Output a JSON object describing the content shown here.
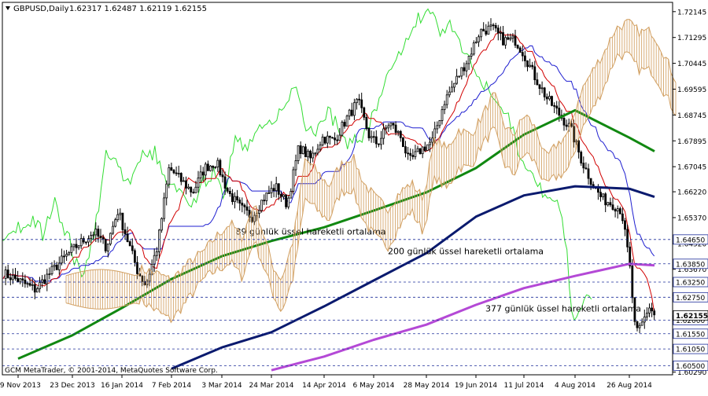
{
  "header": {
    "symbol": "GBPUSD,Daily",
    "ohlc": "1.62317 1.62487 1.62119 1.62155"
  },
  "footer": {
    "copyright": "GCM MetaTrader, © 2001-2014, MetaQuotes Software Corp."
  },
  "colors": {
    "background": "#ffffff",
    "frame": "#000000",
    "candle": "#000000",
    "tenkan": "#d10000",
    "kijun": "#1f1fd0",
    "chikou": "#33dd33",
    "cloud": "#d2a062",
    "ema89": "#118811",
    "ema200": "#0a1a6e",
    "ema377": "#b449d6",
    "level_line": "#1f2f9a",
    "price_tag_bg": "#ffffff"
  },
  "chart_data": {
    "type": "candlestick",
    "instrument": "GBPUSD",
    "timeframe": "Daily",
    "ylim": [
      1.602,
      1.7245
    ],
    "y_ticks": [
      "1.72145",
      "1.71295",
      "1.70445",
      "1.69595",
      "1.68745",
      "1.67895",
      "1.67045",
      "1.66220",
      "1.65370",
      "1.64520",
      "1.63670",
      "1.62820",
      "1.61970",
      "1.61120",
      "1.60290"
    ],
    "x_ticks": [
      "29 Nov 2013",
      "23 Dec 2013",
      "16 Jan 2014",
      "7 Feb 2014",
      "3 Mar 2014",
      "24 Mar 2014",
      "14 Apr 2014",
      "6 May 2014",
      "28 May 2014",
      "19 Jun 2014",
      "11 Jul 2014",
      "4 Aug 2014",
      "26 Aug 2014"
    ],
    "levels": [
      {
        "value": 1.6465,
        "label": "1.64650"
      },
      {
        "value": 1.6385,
        "label": "1.63850"
      },
      {
        "value": 1.6325,
        "label": "1.63250"
      },
      {
        "value": 1.6275,
        "label": "1.62750"
      },
      {
        "value": 1.62,
        "label": "1.62000"
      },
      {
        "value": 1.6155,
        "label": "1.61550"
      },
      {
        "value": 1.6105,
        "label": "1.61050"
      },
      {
        "value": 1.605,
        "label": "1.60500"
      }
    ],
    "current_price": {
      "value": 1.62155,
      "label": "1.62155"
    },
    "annotations": [
      {
        "text": "89 günlük üssel hareketli ortalama",
        "x": "24 Mar 2014",
        "y": 1.6481
      },
      {
        "text": "200 günlük üssel hareketli ortalama",
        "x": "28 May 2014",
        "y": 1.6417
      },
      {
        "text": "377  günlük üssel hareketli ortalama",
        "x": "11 Jul 2014",
        "y": 1.6228
      }
    ],
    "series": [
      {
        "name": "89 günlük üssel hareketli ortalama",
        "x": [
          "29 Nov 2013",
          "23 Dec 2013",
          "16 Jan 2014",
          "7 Feb 2014",
          "3 Mar 2014",
          "24 Mar 2014",
          "14 Apr 2014",
          "6 May 2014",
          "28 May 2014",
          "19 Jun 2014",
          "11 Jul 2014",
          "4 Aug 2014",
          "26 Aug 2014",
          "3 Sep 2014"
        ],
        "values": [
          1.6073,
          1.615,
          1.624,
          1.6335,
          1.641,
          1.646,
          1.6505,
          1.656,
          1.662,
          1.67,
          1.681,
          1.689,
          1.68,
          1.6755
        ]
      },
      {
        "name": "200 günlük üssel hareketli ortalama",
        "x": [
          "7 Feb 2014",
          "3 Mar 2014",
          "24 Mar 2014",
          "14 Apr 2014",
          "6 May 2014",
          "28 May 2014",
          "19 Jun 2014",
          "11 Jul 2014",
          "4 Aug 2014",
          "26 Aug 2014",
          "3 Sep 2014"
        ],
        "values": [
          1.604,
          1.611,
          1.616,
          1.6245,
          1.633,
          1.642,
          1.654,
          1.661,
          1.664,
          1.6632,
          1.6605
        ]
      },
      {
        "name": "377  günlük üssel hareketli ortalama",
        "x": [
          "24 Mar 2014",
          "14 Apr 2014",
          "6 May 2014",
          "28 May 2014",
          "19 Jun 2014",
          "11 Jul 2014",
          "4 Aug 2014",
          "26 Aug 2014",
          "3 Sep 2014"
        ],
        "values": [
          1.6035,
          1.608,
          1.6135,
          1.6185,
          1.625,
          1.6305,
          1.6345,
          1.6385,
          1.638
        ]
      }
    ]
  }
}
